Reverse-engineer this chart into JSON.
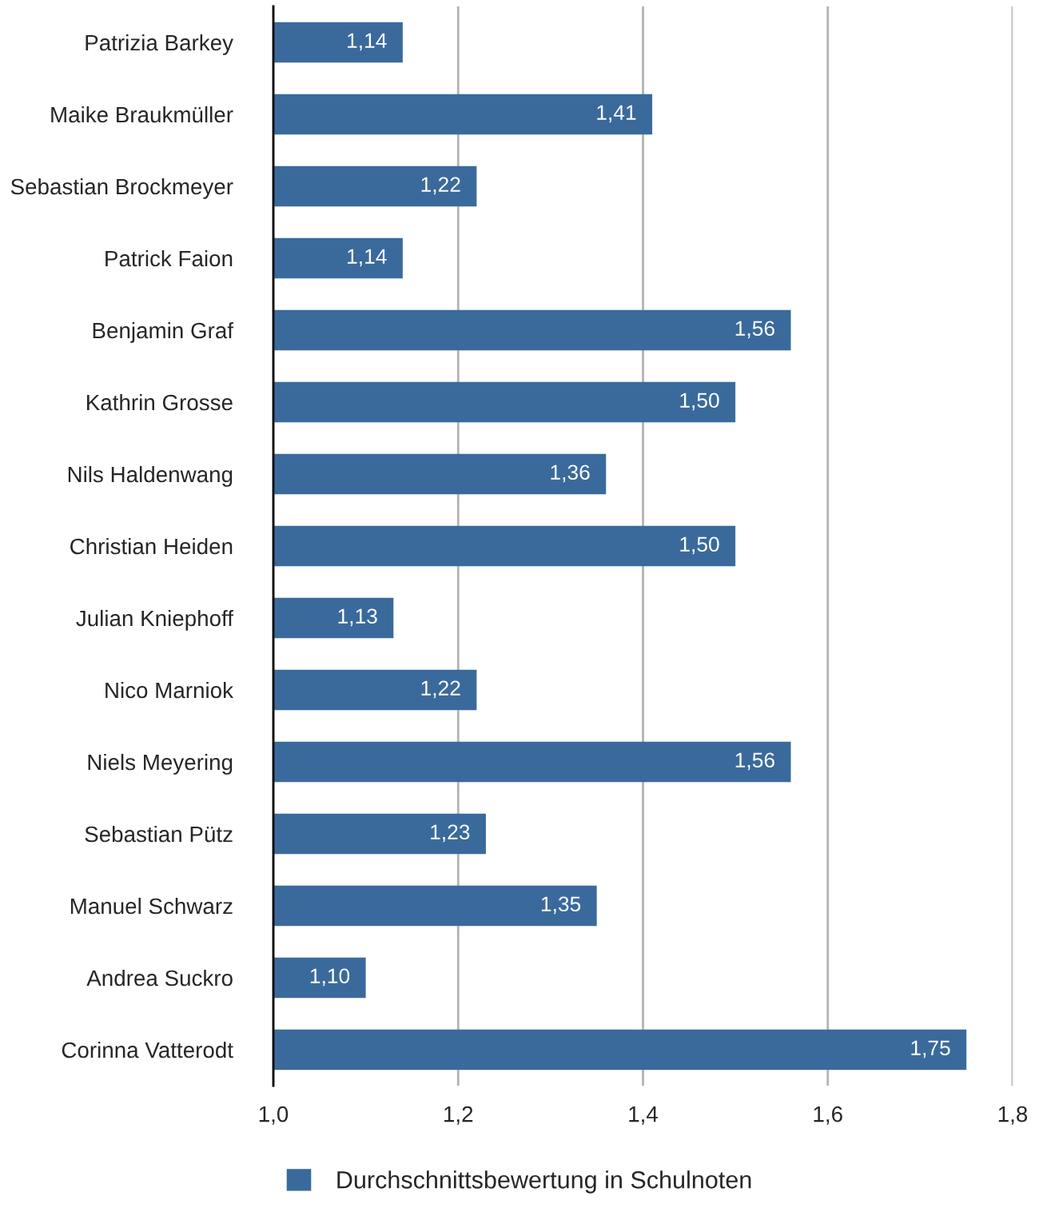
{
  "chart_data": {
    "type": "bar",
    "orientation": "horizontal",
    "categories": [
      "Patrizia Barkey",
      "Maike Braukmüller",
      "Sebastian Brockmeyer",
      "Patrick Faion",
      "Benjamin Graf",
      "Kathrin Grosse",
      "Nils Haldenwang",
      "Christian Heiden",
      "Julian Kniephoff",
      "Nico Marniok",
      "Niels Meyering",
      "Sebastian Pütz",
      "Manuel Schwarz",
      "Andrea Suckro",
      "Corinna Vatterodt"
    ],
    "series": [
      {
        "name": "Durchschnittsbewertung in Schulnoten",
        "color": "#3a6a9c",
        "values": [
          1.14,
          1.41,
          1.22,
          1.14,
          1.56,
          1.5,
          1.36,
          1.5,
          1.13,
          1.22,
          1.56,
          1.23,
          1.35,
          1.1,
          1.75
        ],
        "value_labels": [
          "1,14",
          "1,41",
          "1,22",
          "1,14",
          "1,56",
          "1,50",
          "1,36",
          "1,50",
          "1,13",
          "1,22",
          "1,56",
          "1,23",
          "1,35",
          "1,10",
          "1,75"
        ]
      }
    ],
    "xlim": [
      1.0,
      1.8
    ],
    "xticks": [
      {
        "value": 1.0,
        "label": "1,0"
      },
      {
        "value": 1.2,
        "label": "1,2"
      },
      {
        "value": 1.4,
        "label": "1,4"
      },
      {
        "value": 1.6,
        "label": "1,6"
      },
      {
        "value": 1.8,
        "label": "1,8"
      }
    ],
    "grid": "x",
    "legend": "bottom"
  }
}
